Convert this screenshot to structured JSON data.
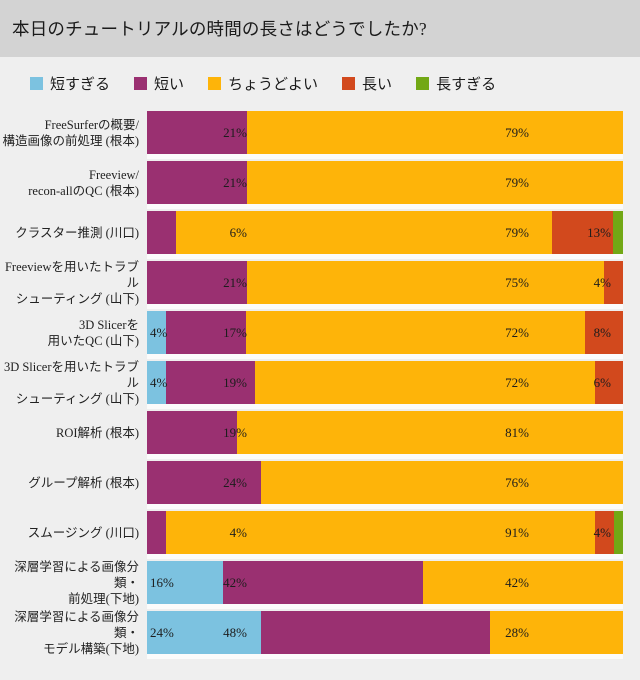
{
  "header": {
    "title": "本日のチュートリアルの時間の長さはどうでしたか?"
  },
  "colors": {
    "page_background": "#efefef",
    "header_background": "#d3d3d3",
    "row_gap": "#fcfcfc",
    "label_text": "#1d1d1d"
  },
  "legend": {
    "position": "top",
    "items": [
      {
        "key": "too_short",
        "label": "短すぎる",
        "color": "#7cc2e0"
      },
      {
        "key": "short",
        "label": "短い",
        "color": "#9a3071"
      },
      {
        "key": "just_right",
        "label": "ちょうどよい",
        "color": "#feb409"
      },
      {
        "key": "long",
        "label": "長い",
        "color": "#d2491d"
      },
      {
        "key": "too_long",
        "label": "長すぎる",
        "color": "#72a815"
      }
    ]
  },
  "chart_data": {
    "type": "bar",
    "orientation": "horizontal",
    "stacked": true,
    "units": "percent",
    "title": "本日のチュートリアルの時間の長さはどうでしたか?",
    "series_order": [
      "too_short",
      "short",
      "just_right",
      "long",
      "too_long"
    ],
    "series_labels": [
      "短すぎる",
      "短い",
      "ちょうどよい",
      "長い",
      "長すぎる"
    ],
    "rows": [
      {
        "label_lines": [
          "FreeSurferの概要/",
          "構造画像の前処理 (根本)"
        ],
        "segments": [
          {
            "series": "short",
            "value": 21,
            "label": "21%"
          },
          {
            "series": "just_right",
            "value": 79,
            "label": "79%"
          }
        ]
      },
      {
        "label_lines": [
          "Freeview/",
          "recon-allのQC (根本)"
        ],
        "segments": [
          {
            "series": "short",
            "value": 21,
            "label": "21%"
          },
          {
            "series": "just_right",
            "value": 79,
            "label": "79%"
          }
        ]
      },
      {
        "label_lines": [
          "クラスター推測 (川口)"
        ],
        "segments": [
          {
            "series": "short",
            "value": 6,
            "label": "6%"
          },
          {
            "series": "just_right",
            "value": 79,
            "label": "79%"
          },
          {
            "series": "long",
            "value": 13,
            "label": "13%"
          },
          {
            "series": "too_long",
            "value": 2,
            "label": null
          }
        ]
      },
      {
        "label_lines": [
          "Freeviewを用いたトラブル",
          "シューティング (山下)"
        ],
        "segments": [
          {
            "series": "short",
            "value": 21,
            "label": "21%"
          },
          {
            "series": "just_right",
            "value": 75,
            "label": "75%"
          },
          {
            "series": "long",
            "value": 4,
            "label": "4%"
          }
        ]
      },
      {
        "label_lines": [
          "3D Slicerを",
          "用いたQC (山下)"
        ],
        "segments": [
          {
            "series": "too_short",
            "value": 4,
            "label": "4%"
          },
          {
            "series": "short",
            "value": 17,
            "label": "17%"
          },
          {
            "series": "just_right",
            "value": 72,
            "label": "72%"
          },
          {
            "series": "long",
            "value": 8,
            "label": "8%"
          }
        ]
      },
      {
        "label_lines": [
          "3D Slicerを用いたトラブル",
          "シューティング (山下)"
        ],
        "segments": [
          {
            "series": "too_short",
            "value": 4,
            "label": "4%"
          },
          {
            "series": "short",
            "value": 19,
            "label": "19%"
          },
          {
            "series": "just_right",
            "value": 72,
            "label": "72%"
          },
          {
            "series": "long",
            "value": 6,
            "label": "6%"
          }
        ]
      },
      {
        "label_lines": [
          "ROI解析 (根本)"
        ],
        "segments": [
          {
            "series": "short",
            "value": 19,
            "label": "19%"
          },
          {
            "series": "just_right",
            "value": 81,
            "label": "81%"
          }
        ]
      },
      {
        "label_lines": [
          "グループ解析 (根本)"
        ],
        "segments": [
          {
            "series": "short",
            "value": 24,
            "label": "24%"
          },
          {
            "series": "just_right",
            "value": 76,
            "label": "76%"
          }
        ]
      },
      {
        "label_lines": [
          "スムージング (川口)"
        ],
        "segments": [
          {
            "series": "short",
            "value": 4,
            "label": "4%"
          },
          {
            "series": "just_right",
            "value": 91,
            "label": "91%"
          },
          {
            "series": "long",
            "value": 4,
            "label": "4%"
          },
          {
            "series": "too_long",
            "value": 2,
            "label": null
          }
        ]
      },
      {
        "label_lines": [
          "深層学習による画像分類・",
          "前処理(下地)"
        ],
        "segments": [
          {
            "series": "too_short",
            "value": 16,
            "label": "16%"
          },
          {
            "series": "short",
            "value": 42,
            "label": "42%"
          },
          {
            "series": "just_right",
            "value": 42,
            "label": "42%"
          }
        ]
      },
      {
        "label_lines": [
          "深層学習による画像分類・",
          "モデル構築(下地)"
        ],
        "segments": [
          {
            "series": "too_short",
            "value": 24,
            "label": "24%"
          },
          {
            "series": "short",
            "value": 48,
            "label": "48%"
          },
          {
            "series": "just_right",
            "value": 28,
            "label": "28%"
          }
        ]
      }
    ]
  }
}
